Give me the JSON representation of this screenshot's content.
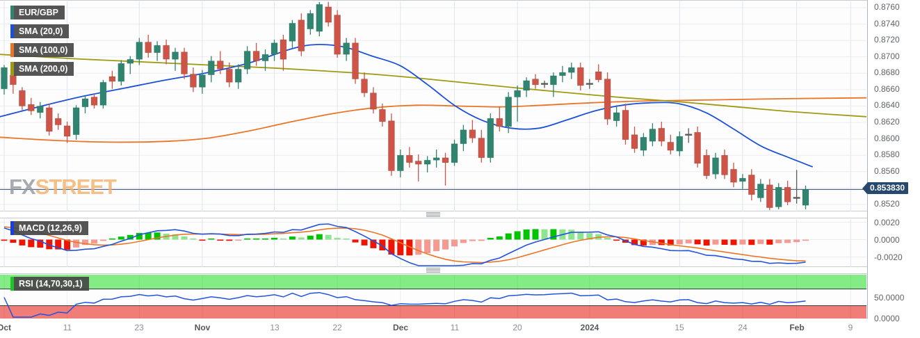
{
  "legend": {
    "symbol": {
      "label": "EUR/GBP",
      "color": "#2f8570"
    },
    "sma20": {
      "label": "SMA (20,0)",
      "color": "#1b50d8"
    },
    "sma100": {
      "label": "SMA (100,0)",
      "color": "#ec7525"
    },
    "sma200": {
      "label": "SMA (200,0)",
      "color": "#a09a10"
    },
    "macd": {
      "label": "MACD (12,26,9)",
      "color": "#1a3fe0"
    },
    "rsi": {
      "label": "RSI (14,70,30,1)",
      "color": "#22c32a"
    }
  },
  "watermark": {
    "fx": "FX",
    "street": "STREET"
  },
  "current_price": "0.853830",
  "colors": {
    "up": "#2f8570",
    "down": "#cd5446",
    "doji": "#5a5a5a",
    "grid": "#ebedf1",
    "vgrid": "#e2e4e9",
    "price_line": "#2b4c70",
    "hist_up": "#00c400",
    "hist_up_pale": "#8fe48f",
    "hist_down": "#ee1400",
    "hist_down_pale": "#f49a90",
    "macd_line": "#2153dc",
    "signal_line": "#ec7525",
    "rsi_line": "#2153dc",
    "overbought_fill": "#84ec84",
    "oversold_fill": "#f07d78",
    "band_edge": "#3a3a3a"
  },
  "chart_data": {
    "type": "candlestick",
    "symbol": "EUR/GBP",
    "last_price": 0.85383,
    "price_axis_labels": [
      "0.8760",
      "0.8740",
      "0.8720",
      "0.8700",
      "0.8680",
      "0.8660",
      "0.8640",
      "0.8620",
      "0.8600",
      "0.8580",
      "0.8560",
      "0.8520"
    ],
    "price_grid": {
      "min": 0.852,
      "max": 0.876,
      "step": 0.002
    },
    "x_ticks": [
      {
        "label": "Oct",
        "index": 0,
        "bold": true
      },
      {
        "label": "11",
        "index": 7,
        "bold": false
      },
      {
        "label": "23",
        "index": 15,
        "bold": false
      },
      {
        "label": "Nov",
        "index": 22,
        "bold": true
      },
      {
        "label": "13",
        "index": 30,
        "bold": false
      },
      {
        "label": "22",
        "index": 37,
        "bold": false
      },
      {
        "label": "Dec",
        "index": 44,
        "bold": true
      },
      {
        "label": "11",
        "index": 50,
        "bold": false
      },
      {
        "label": "20",
        "index": 57,
        "bold": false
      },
      {
        "label": "2024",
        "index": 65,
        "bold": true
      },
      {
        "label": "15",
        "index": 75,
        "bold": false
      },
      {
        "label": "24",
        "index": 82,
        "bold": false
      },
      {
        "label": "Feb",
        "index": 88,
        "bold": true
      },
      {
        "label": "9",
        "index": 94,
        "bold": false
      }
    ],
    "ohlc_x10000": [
      [
        8661,
        8690,
        8654,
        8687
      ],
      [
        8678,
        8685,
        8655,
        8666
      ],
      [
        8659,
        8663,
        8635,
        8640
      ],
      [
        8642,
        8650,
        8629,
        8634
      ],
      [
        8632,
        8645,
        8625,
        8640
      ],
      [
        8638,
        8643,
        8604,
        8609
      ],
      [
        8625,
        8631,
        8611,
        8617
      ],
      [
        8616,
        8621,
        8595,
        8603
      ],
      [
        8605,
        8641,
        8599,
        8638
      ],
      [
        8639,
        8653,
        8631,
        8649
      ],
      [
        8651,
        8655,
        8637,
        8641
      ],
      [
        8641,
        8672,
        8637,
        8669
      ],
      [
        8676,
        8683,
        8661,
        8670
      ],
      [
        8670,
        8696,
        8665,
        8692
      ],
      [
        8692,
        8701,
        8679,
        8697
      ],
      [
        8697,
        8723,
        8690,
        8718
      ],
      [
        8718,
        8727,
        8699,
        8705
      ],
      [
        8705,
        8719,
        8695,
        8714
      ],
      [
        8714,
        8721,
        8691,
        8697
      ],
      [
        8697,
        8711,
        8683,
        8706
      ],
      [
        8706,
        8711,
        8673,
        8679
      ],
      [
        8679,
        8687,
        8657,
        8663
      ],
      [
        8663,
        8684,
        8655,
        8678
      ],
      [
        8678,
        8701,
        8669,
        8695
      ],
      [
        8695,
        8707,
        8679,
        8685
      ],
      [
        8685,
        8693,
        8663,
        8669
      ],
      [
        8669,
        8691,
        8661,
        8685
      ],
      [
        8685,
        8713,
        8679,
        8707
      ],
      [
        8707,
        8717,
        8689,
        8695
      ],
      [
        8695,
        8709,
        8683,
        8703
      ],
      [
        8703,
        8721,
        8695,
        8717
      ],
      [
        8721,
        8727,
        8683,
        8697
      ],
      [
        8719,
        8745,
        8711,
        8741
      ],
      [
        8745,
        8753,
        8701,
        8707
      ],
      [
        8734,
        8757,
        8727,
        8753
      ],
      [
        8731,
        8767,
        8725,
        8764
      ],
      [
        8761,
        8767,
        8737,
        8742
      ],
      [
        8751,
        8757,
        8699,
        8703
      ],
      [
        8703,
        8723,
        8695,
        8717
      ],
      [
        8717,
        8723,
        8667,
        8673
      ],
      [
        8673,
        8681,
        8651,
        8656
      ],
      [
        8656,
        8663,
        8631,
        8636
      ],
      [
        8636,
        8643,
        8615,
        8621
      ],
      [
        8622,
        8631,
        8555,
        8561
      ],
      [
        8561,
        8587,
        8553,
        8580
      ],
      [
        8580,
        8590,
        8565,
        8571
      ],
      [
        8573,
        8581,
        8548,
        8569
      ],
      [
        8569,
        8579,
        8559,
        8574
      ],
      [
        8574,
        8587,
        8565,
        8577
      ],
      [
        8577,
        8583,
        8543,
        8571
      ],
      [
        8571,
        8599,
        8567,
        8594
      ],
      [
        8594,
        8617,
        8585,
        8611
      ],
      [
        8611,
        8623,
        8595,
        8601
      ],
      [
        8601,
        8611,
        8571,
        8577
      ],
      [
        8577,
        8631,
        8571,
        8625
      ],
      [
        8625,
        8639,
        8609,
        8615
      ],
      [
        8615,
        8657,
        8607,
        8651
      ],
      [
        8651,
        8665,
        8621,
        8659
      ],
      [
        8659,
        8675,
        8651,
        8671
      ],
      [
        8673,
        8679,
        8661,
        8666
      ],
      [
        8667,
        8671,
        8662,
        8667
      ],
      [
        8666,
        8681,
        8651,
        8677
      ],
      [
        8677,
        8689,
        8669,
        8681
      ],
      [
        8681,
        8693,
        8673,
        8687
      ],
      [
        8687,
        8693,
        8659,
        8665
      ],
      [
        8667,
        8673,
        8661,
        8667
      ],
      [
        8682,
        8691,
        8669,
        8672
      ],
      [
        8673,
        8681,
        8617,
        8624
      ],
      [
        8622,
        8641,
        8615,
        8632
      ],
      [
        8635,
        8643,
        8593,
        8599
      ],
      [
        8605,
        8615,
        8583,
        8588
      ],
      [
        8586,
        8607,
        8579,
        8602
      ],
      [
        8597,
        8619,
        8591,
        8612
      ],
      [
        8613,
        8621,
        8591,
        8597
      ],
      [
        8596,
        8605,
        8581,
        8586
      ],
      [
        8585,
        8609,
        8579,
        8603
      ],
      [
        8605,
        8613,
        8595,
        8605
      ],
      [
        8608,
        8615,
        8565,
        8570
      ],
      [
        8580,
        8587,
        8551,
        8555
      ],
      [
        8557,
        8583,
        8551,
        8577
      ],
      [
        8580,
        8587,
        8551,
        8556
      ],
      [
        8563,
        8571,
        8541,
        8547
      ],
      [
        8548,
        8557,
        8539,
        8552
      ],
      [
        8556,
        8563,
        8525,
        8532
      ],
      [
        8528,
        8551,
        8523,
        8545
      ],
      [
        8544,
        8551,
        8513,
        8516
      ],
      [
        8517,
        8546,
        8514,
        8541
      ],
      [
        8541,
        8549,
        8519,
        8523
      ],
      [
        8528,
        8562,
        8521,
        8528
      ],
      [
        8519,
        8543,
        8514,
        8538.3
      ]
    ],
    "sma20_points_x10000": [
      [
        0,
        8627
      ],
      [
        60,
        8640
      ],
      [
        120,
        8652
      ],
      [
        180,
        8662
      ],
      [
        240,
        8672
      ],
      [
        300,
        8681
      ],
      [
        360,
        8693
      ],
      [
        420,
        8710
      ],
      [
        455,
        8715
      ],
      [
        495,
        8712
      ],
      [
        535,
        8701
      ],
      [
        576,
        8689
      ],
      [
        615,
        8666
      ],
      [
        655,
        8640
      ],
      [
        695,
        8622
      ],
      [
        735,
        8613
      ],
      [
        775,
        8613
      ],
      [
        815,
        8623
      ],
      [
        855,
        8634
      ],
      [
        895,
        8641
      ],
      [
        935,
        8644
      ],
      [
        975,
        8643
      ],
      [
        1015,
        8632
      ],
      [
        1055,
        8612
      ],
      [
        1095,
        8591
      ],
      [
        1135,
        8577
      ],
      [
        1168,
        8566
      ]
    ],
    "sma100_points_x10000": [
      [
        0,
        8602
      ],
      [
        80,
        8598
      ],
      [
        160,
        8596
      ],
      [
        240,
        8597
      ],
      [
        300,
        8601
      ],
      [
        360,
        8610
      ],
      [
        420,
        8621
      ],
      [
        480,
        8631
      ],
      [
        540,
        8638
      ],
      [
        600,
        8641
      ],
      [
        660,
        8640
      ],
      [
        720,
        8639
      ],
      [
        780,
        8641
      ],
      [
        850,
        8644
      ],
      [
        920,
        8646
      ],
      [
        990,
        8647
      ],
      [
        1060,
        8648
      ],
      [
        1130,
        8649
      ],
      [
        1246,
        8650
      ]
    ],
    "sma200_points_x10000": [
      [
        0,
        8703
      ],
      [
        100,
        8698
      ],
      [
        200,
        8694
      ],
      [
        300,
        8690
      ],
      [
        400,
        8686
      ],
      [
        500,
        8681
      ],
      [
        576,
        8676
      ],
      [
        650,
        8670
      ],
      [
        744,
        8662
      ],
      [
        820,
        8656
      ],
      [
        900,
        8650
      ],
      [
        980,
        8645
      ],
      [
        1060,
        8639
      ],
      [
        1140,
        8633
      ],
      [
        1246,
        8627
      ]
    ],
    "macd": {
      "params": "12,26,9",
      "axis_labels": [
        "0.0020",
        "0.0000",
        "-0.0020"
      ],
      "axis_values": [
        0.002,
        0,
        -0.002
      ]
    },
    "rsi": {
      "params": "14,70,30,1",
      "axis_labels": [
        "50.0000",
        "0.0000"
      ],
      "axis_values": [
        50,
        0
      ],
      "overbought": 70,
      "oversold": 30
    }
  }
}
